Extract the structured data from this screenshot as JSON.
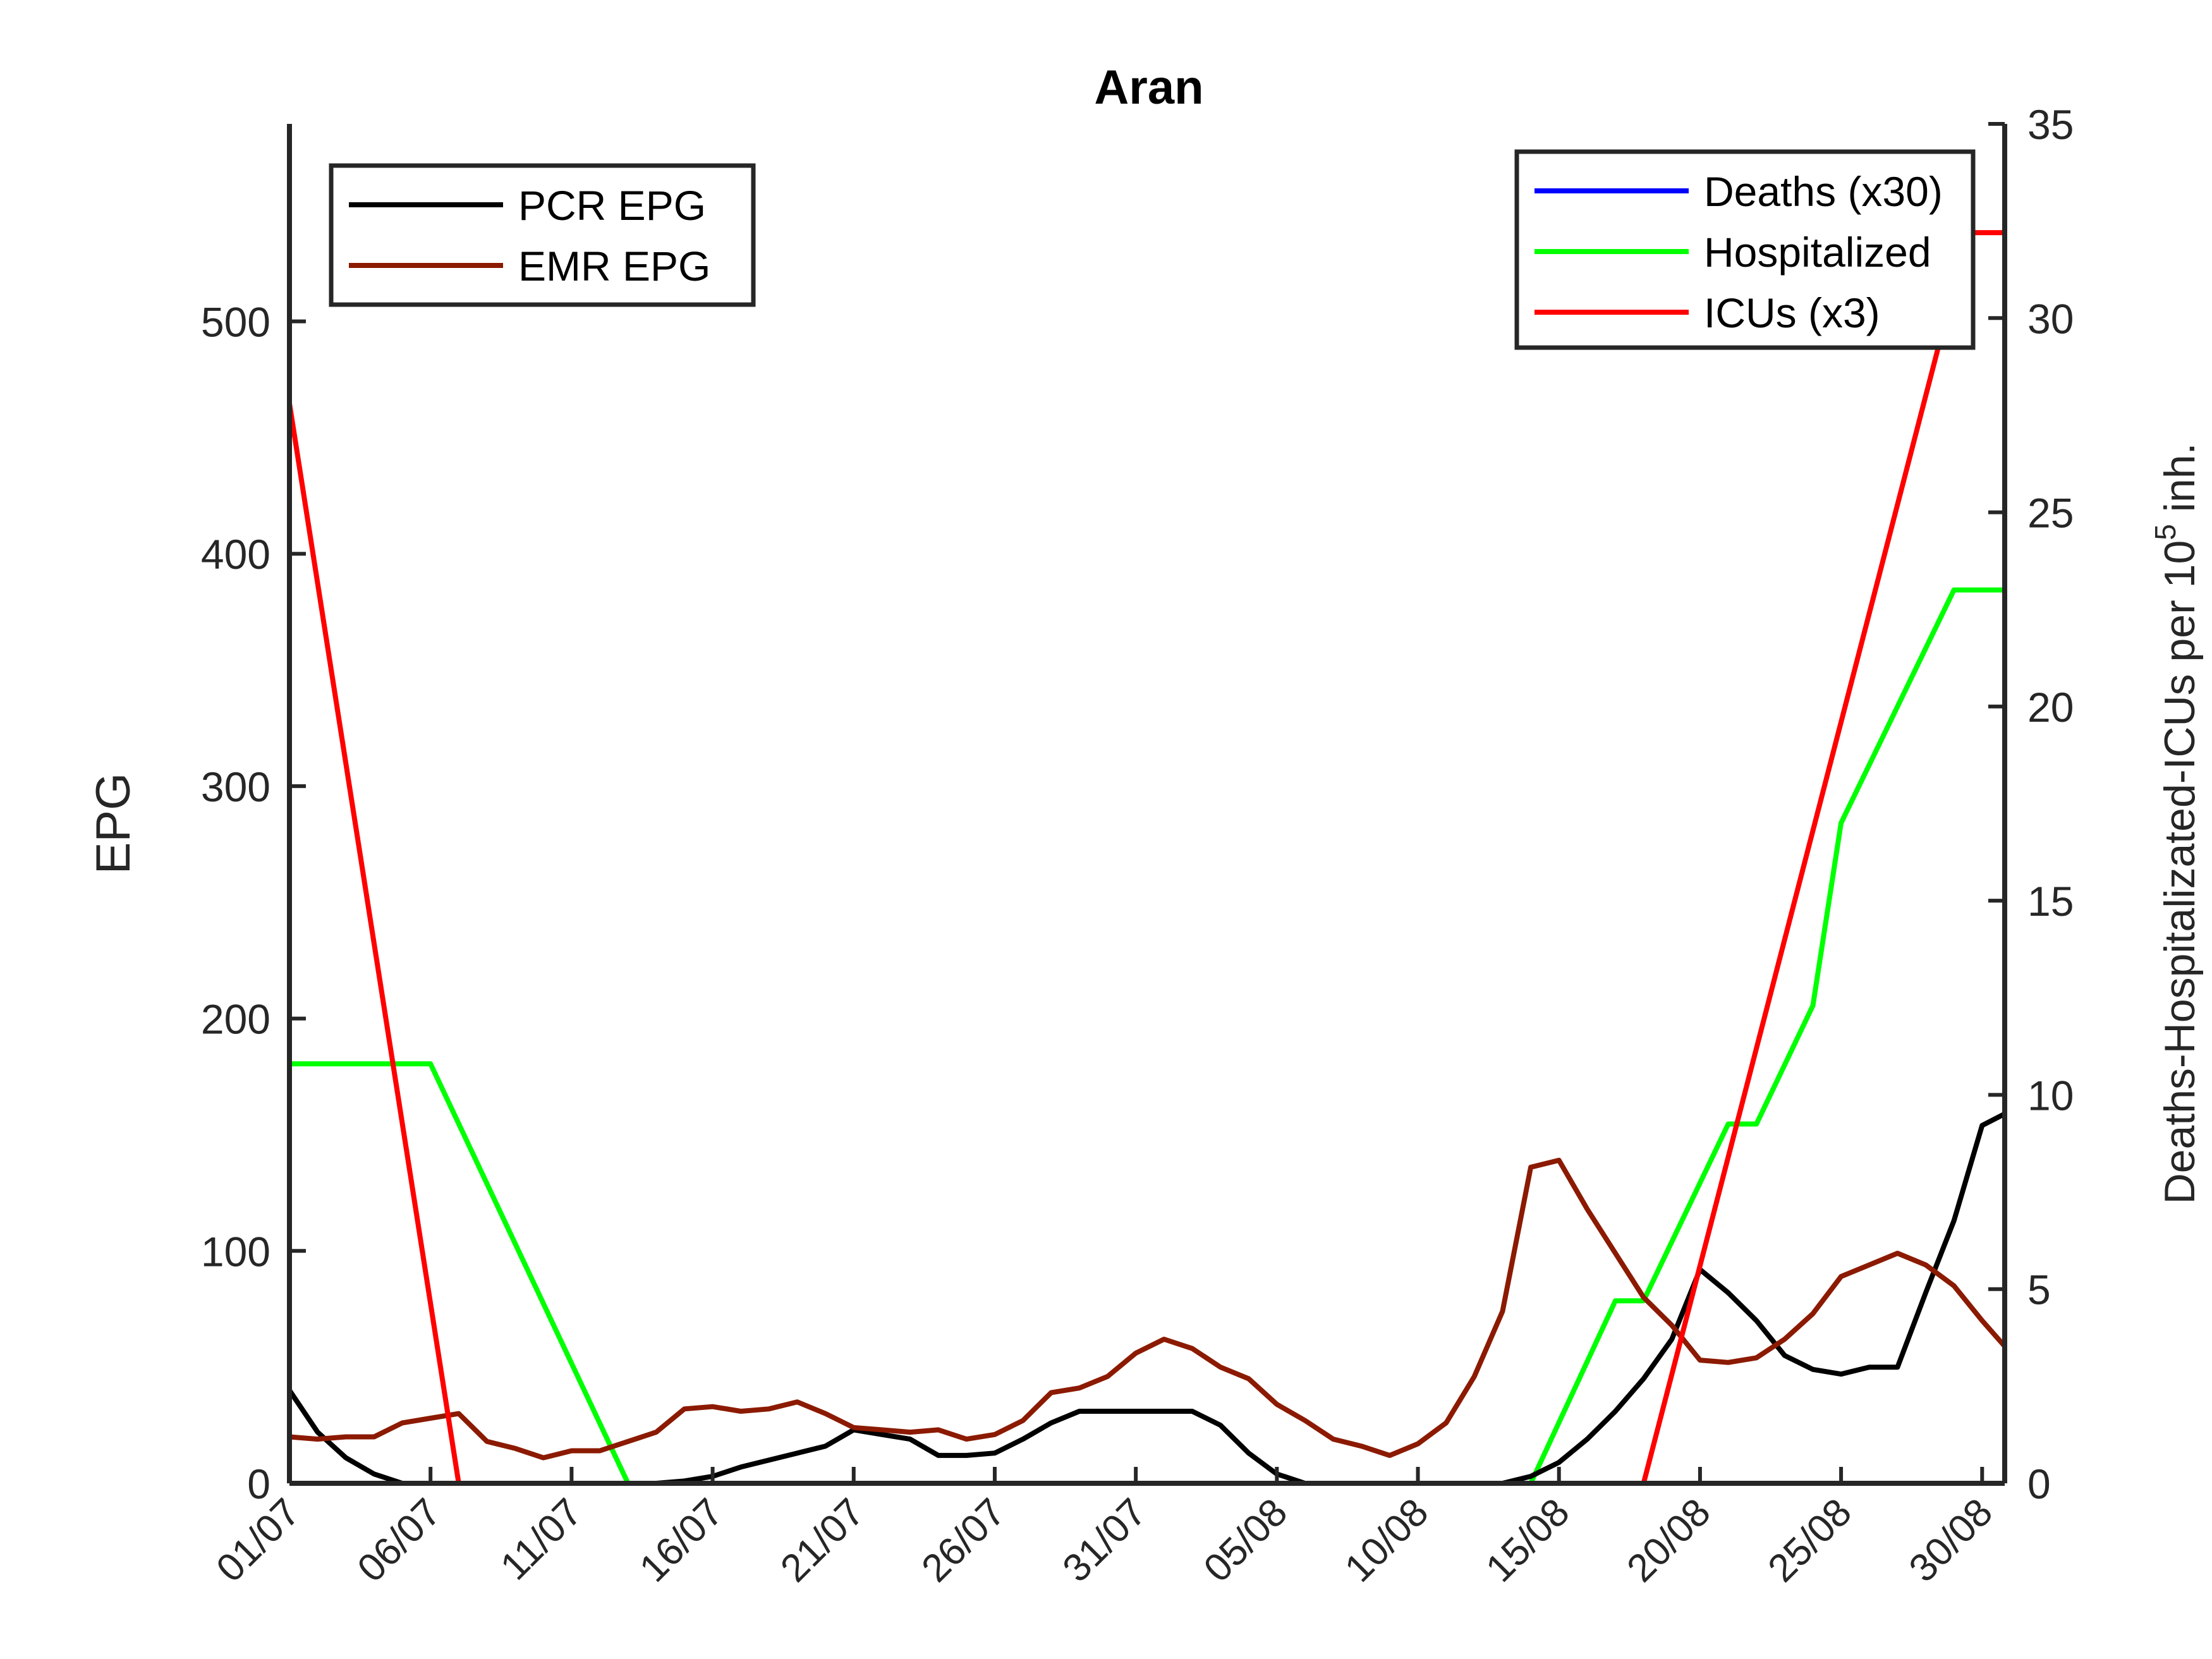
{
  "chart_data": {
    "type": "line",
    "title": "Aran",
    "xlabel": "",
    "ylabel_left": "EPG",
    "ylabel_right_prefix": "Deaths-Hospitalizated-ICUs per 10",
    "ylabel_right_exponent": "5",
    "ylabel_right_suffix": " inh.",
    "x_ticks": [
      "01/07",
      "06/07",
      "11/07",
      "16/07",
      "21/07",
      "26/07",
      "31/07",
      "05/08",
      "10/08",
      "15/08",
      "20/08",
      "25/08",
      "30/08"
    ],
    "x_tick_days": [
      0,
      5,
      10,
      15,
      20,
      25,
      30,
      35,
      40,
      45,
      50,
      55,
      60
    ],
    "xlim": [
      0,
      60.8
    ],
    "ylim_left": [
      0,
      585
    ],
    "yticks_left": [
      0,
      100,
      200,
      300,
      400,
      500
    ],
    "ylim_right": [
      0,
      35
    ],
    "yticks_right": [
      0,
      5,
      10,
      15,
      20,
      25,
      30,
      35
    ],
    "legend_left": {
      "position": "top-left",
      "entries": [
        "PCR EPG",
        "EMR EPG"
      ]
    },
    "legend_right": {
      "position": "top-right",
      "entries": [
        "Deaths (x30)",
        "Hospitalized",
        "ICUs (x3)"
      ]
    },
    "series_left": [
      {
        "name": "PCR EPG",
        "color": "#000000",
        "x": [
          0,
          1,
          2,
          3,
          4,
          5,
          6,
          7,
          8,
          9,
          10,
          11,
          12,
          13,
          14,
          15,
          16,
          17,
          18,
          19,
          20,
          21,
          22,
          23,
          24,
          25,
          26,
          27,
          28,
          29,
          30,
          31,
          32,
          33,
          34,
          35,
          36,
          37,
          38,
          39,
          40,
          41,
          42,
          43,
          44,
          45,
          46,
          47,
          48,
          49,
          50,
          51,
          52,
          53,
          54,
          55,
          56,
          57,
          58,
          59,
          60,
          60.8
        ],
        "values": [
          40,
          22,
          11,
          4,
          0,
          0,
          0,
          0,
          0,
          0,
          0,
          0,
          0,
          0,
          1,
          3,
          7,
          10,
          13,
          16,
          23,
          21,
          19,
          12,
          12,
          13,
          19,
          26,
          31,
          31,
          31,
          31,
          31,
          25,
          13,
          4,
          0,
          0,
          0,
          0,
          0,
          0,
          0,
          0,
          3,
          9,
          19,
          31,
          45,
          62,
          92,
          82,
          70,
          55,
          49,
          47,
          50,
          50,
          82,
          113,
          154,
          159
        ]
      },
      {
        "name": "EMR EPG",
        "color": "#8b1a00",
        "x": [
          0,
          1,
          2,
          3,
          4,
          5,
          6,
          7,
          8,
          9,
          10,
          11,
          12,
          13,
          14,
          15,
          16,
          17,
          18,
          19,
          20,
          21,
          22,
          23,
          24,
          25,
          26,
          27,
          28,
          29,
          30,
          31,
          32,
          33,
          34,
          35,
          36,
          37,
          38,
          39,
          40,
          41,
          42,
          43,
          44,
          45,
          46,
          47,
          48,
          49,
          50,
          51,
          52,
          53,
          54,
          55,
          56,
          57,
          58,
          59,
          60,
          60.8
        ],
        "values": [
          20,
          19,
          20,
          20,
          26,
          28,
          30,
          18,
          15,
          11,
          14,
          14,
          18,
          22,
          32,
          33,
          31,
          32,
          35,
          30,
          24,
          23,
          22,
          23,
          19,
          21,
          27,
          39,
          41,
          46,
          56,
          62,
          58,
          50,
          45,
          34,
          27,
          19,
          16,
          12,
          17,
          26,
          46,
          74,
          136,
          139,
          118,
          99,
          80,
          68,
          53,
          52,
          54,
          62,
          73,
          89,
          94,
          99,
          94,
          85,
          70,
          59
        ]
      }
    ],
    "series_right": [
      {
        "name": "Deaths (x30)",
        "color": "#0000ff",
        "x": [
          0,
          60.8
        ],
        "values": [
          0,
          0
        ]
      },
      {
        "name": "Hospitalized",
        "color": "#00ff00",
        "x": [
          0,
          5,
          12,
          13,
          44,
          47,
          48,
          51,
          52,
          54,
          55,
          59,
          60.8
        ],
        "values": [
          10.8,
          10.8,
          0,
          0,
          0,
          4.7,
          4.7,
          9.25,
          9.25,
          12.3,
          17,
          23,
          23
        ]
      },
      {
        "name": "ICUs (x3)",
        "color": "#ff0000",
        "x": [
          0,
          6,
          48,
          59.5,
          60.8
        ],
        "values": [
          27.8,
          0,
          0,
          32.2,
          32.2
        ]
      }
    ]
  }
}
